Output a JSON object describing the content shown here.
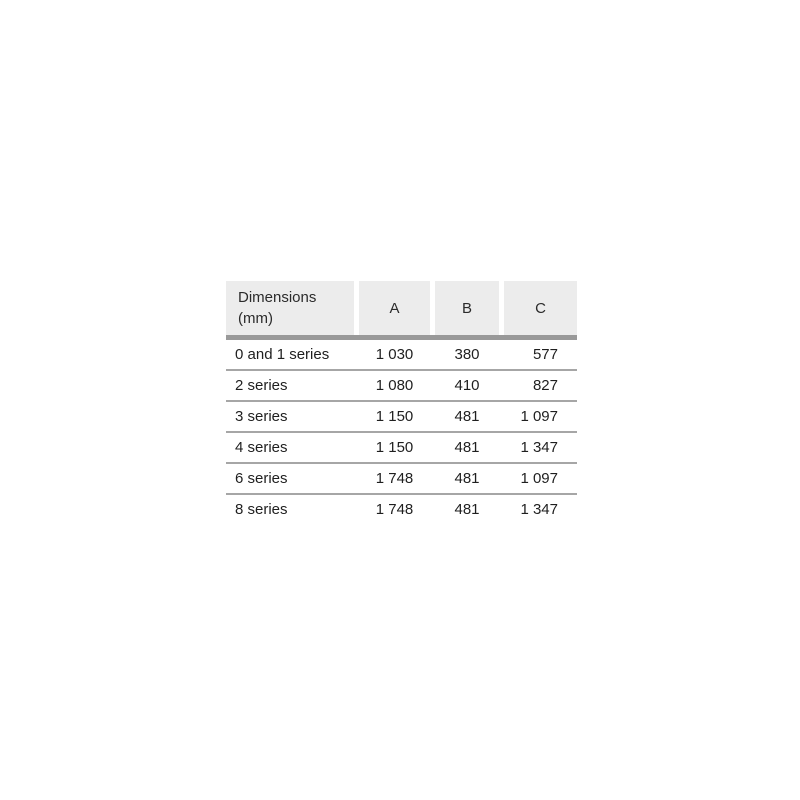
{
  "table": {
    "header": {
      "dimensions_line1": "Dimensions",
      "dimensions_line2": "(mm)",
      "col_a": "A",
      "col_b": "B",
      "col_c": "C"
    },
    "rows": [
      {
        "label": "0 and 1 series",
        "a": "1 030",
        "b": "380",
        "c": "577"
      },
      {
        "label": "2 series",
        "a": "1 080",
        "b": "410",
        "c": "827"
      },
      {
        "label": "3 series",
        "a": "1 150",
        "b": "481",
        "c": "1 097"
      },
      {
        "label": "4 series",
        "a": "1 150",
        "b": "481",
        "c": "1 347"
      },
      {
        "label": "6 series",
        "a": "1 748",
        "b": "481",
        "c": "1 097"
      },
      {
        "label": "8 series",
        "a": "1 748",
        "b": "481",
        "c": "1 347"
      }
    ],
    "colors": {
      "header_bg": "#ececec",
      "header_rule": "#999999",
      "row_rule": "#a6a6a6",
      "text": "#1f1f1f",
      "page_bg": "#ffffff"
    }
  }
}
